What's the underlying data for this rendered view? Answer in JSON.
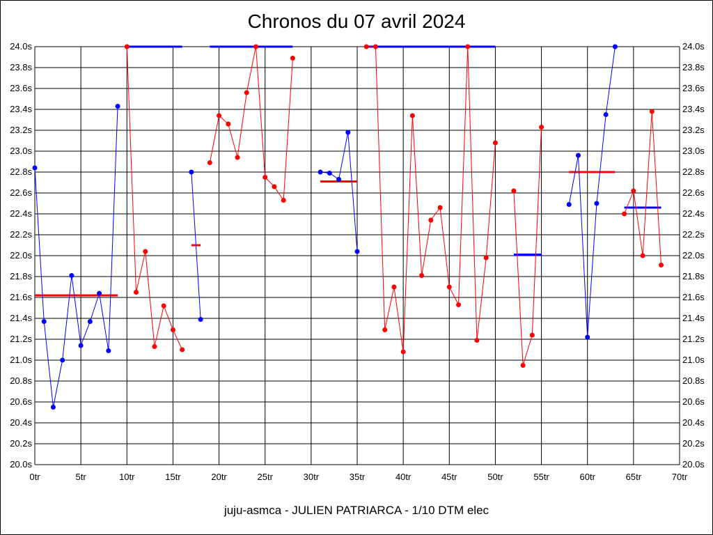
{
  "chart_data": {
    "type": "line",
    "title": "Chronos du 07 avril 2024",
    "subtitle": "juju-asmca - JULIEN PATRIARCA - 1/10 DTM elec",
    "xlabel": "",
    "ylabel": "",
    "xlim": [
      0,
      70
    ],
    "ylim": [
      20.0,
      24.0
    ],
    "x_ticks": [
      "0tr",
      "5tr",
      "10tr",
      "15tr",
      "20tr",
      "25tr",
      "30tr",
      "35tr",
      "40tr",
      "45tr",
      "50tr",
      "55tr",
      "60tr",
      "65tr",
      "70tr"
    ],
    "y_ticks": [
      "20.0s",
      "20.2s",
      "20.4s",
      "20.6s",
      "20.8s",
      "21.0s",
      "21.2s",
      "21.4s",
      "21.6s",
      "21.8s",
      "22.0s",
      "22.2s",
      "22.4s",
      "22.6s",
      "22.8s",
      "23.0s",
      "23.2s",
      "23.4s",
      "23.6s",
      "23.8s",
      "24.0s"
    ],
    "x_grid_step": 5,
    "y_grid_step": 0.2,
    "grid": true,
    "y_axis_both_sides": true,
    "series": [
      {
        "color": "#0000ff",
        "x": [
          0,
          1,
          2,
          3,
          4,
          5,
          6,
          7,
          8,
          9
        ],
        "y": [
          22.84,
          21.37,
          20.55,
          21.0,
          21.81,
          21.14,
          21.37,
          21.64,
          21.09,
          23.43
        ]
      },
      {
        "color": "#ff0000",
        "x": [
          10,
          11,
          12,
          13,
          14,
          15,
          16
        ],
        "y": [
          24.0,
          21.65,
          22.04,
          21.13,
          21.52,
          21.29,
          21.1
        ]
      },
      {
        "color": "#0000ff",
        "x": [
          17,
          18
        ],
        "y": [
          22.8,
          21.39
        ]
      },
      {
        "color": "#ff0000",
        "x": [
          19,
          20,
          21,
          22,
          23,
          24,
          25,
          26,
          27,
          28
        ],
        "y": [
          22.89,
          23.34,
          23.26,
          22.94,
          23.56,
          24.0,
          22.75,
          22.66,
          22.53,
          23.89
        ]
      },
      {
        "color": "#0000ff",
        "x": [
          31,
          32,
          33,
          34,
          35
        ],
        "y": [
          22.8,
          22.79,
          22.73,
          23.18,
          22.04
        ]
      },
      {
        "color": "#ff0000",
        "x": [
          36,
          37,
          38,
          39,
          40,
          41,
          42,
          43,
          44,
          45,
          46,
          47,
          48,
          49,
          50
        ],
        "y": [
          24.0,
          24.0,
          21.29,
          21.7,
          21.08,
          23.34,
          21.81,
          22.34,
          22.46,
          21.7,
          21.53,
          24.0,
          21.19,
          21.98,
          23.08
        ]
      },
      {
        "color": "#ff0000",
        "x": [
          52,
          53,
          54,
          55
        ],
        "y": [
          22.62,
          20.95,
          21.24,
          23.23
        ]
      },
      {
        "color": "#0000ff",
        "x": [
          58,
          59,
          60,
          61,
          62,
          63
        ],
        "y": [
          22.49,
          22.96,
          21.22,
          22.5,
          23.35,
          24.0
        ]
      },
      {
        "color": "#ff0000",
        "x": [
          64,
          65,
          66,
          67,
          68
        ],
        "y": [
          22.4,
          22.62,
          22.0,
          23.38,
          21.91
        ]
      }
    ],
    "averages": [
      {
        "color": "#ff0000",
        "x": [
          0,
          9
        ],
        "y": 21.62
      },
      {
        "color": "#0000ff",
        "x": [
          10,
          16
        ],
        "y": 24.0
      },
      {
        "color": "#ff0000",
        "x": [
          17,
          18
        ],
        "y": 22.1
      },
      {
        "color": "#0000ff",
        "x": [
          19,
          28
        ],
        "y": 24.0
      },
      {
        "color": "#ff0000",
        "x": [
          31,
          35
        ],
        "y": 22.71
      },
      {
        "color": "#0000ff",
        "x": [
          36,
          50
        ],
        "y": 24.0
      },
      {
        "color": "#0000ff",
        "x": [
          52,
          55
        ],
        "y": 22.01
      },
      {
        "color": "#ff0000",
        "x": [
          58,
          63
        ],
        "y": 22.8
      },
      {
        "color": "#0000ff",
        "x": [
          64,
          68
        ],
        "y": 22.46
      }
    ]
  }
}
